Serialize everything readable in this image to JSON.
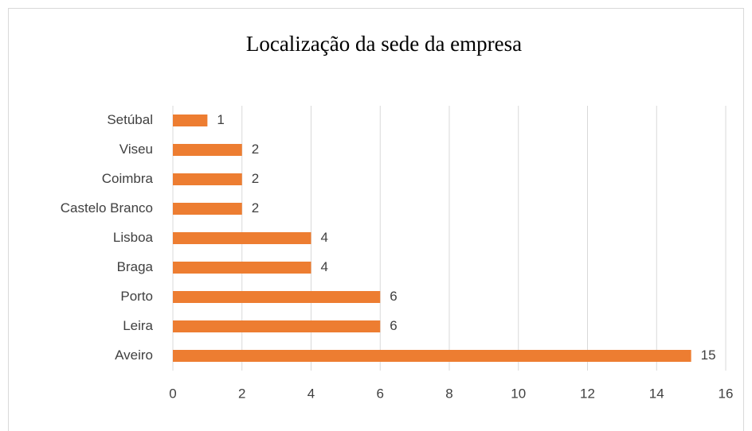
{
  "chart_data": {
    "type": "barh",
    "title": "Localização da sede da empresa",
    "categories": [
      "Setúbal",
      "Viseu",
      "Coimbra",
      "Castelo Branco",
      "Lisboa",
      "Braga",
      "Porto",
      "Leira",
      "Aveiro"
    ],
    "values": [
      1,
      2,
      2,
      2,
      4,
      4,
      6,
      6,
      15
    ],
    "color": "#ed7d31",
    "xlim": [
      0,
      16
    ],
    "xticks": [
      0,
      2,
      4,
      6,
      8,
      10,
      12,
      14,
      16
    ],
    "grid": true
  }
}
